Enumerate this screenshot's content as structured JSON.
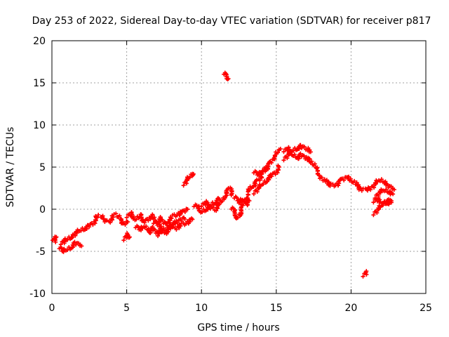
{
  "chart_data": {
    "type": "scatter",
    "title": "Day 253 of 2022, Sidereal Day-to-day VTEC variation (SDTVAR) for receiver p817",
    "xlabel": "GPS time / hours",
    "ylabel": "SDTVAR / TECUs",
    "xlim": [
      0,
      25
    ],
    "ylim": [
      -10,
      20
    ],
    "xticks": [
      0,
      5,
      10,
      15,
      20,
      25
    ],
    "yticks": [
      -10,
      -5,
      0,
      5,
      10,
      15,
      20
    ],
    "grid": true,
    "marker": "plus",
    "series": [
      {
        "name": "SDTVAR",
        "color": "#ff0000",
        "segments": [
          [
            [
              0.05,
              -3.5
            ],
            [
              0.2,
              -3.8
            ],
            [
              0.3,
              -3.3
            ]
          ],
          [
            [
              0.5,
              -4.5
            ],
            [
              0.7,
              -5.0
            ],
            [
              1.0,
              -4.8
            ],
            [
              1.3,
              -4.5
            ],
            [
              1.6,
              -4.0
            ],
            [
              1.9,
              -4.2
            ]
          ],
          [
            [
              0.6,
              -4.0
            ],
            [
              0.8,
              -3.8
            ],
            [
              1.0,
              -3.6
            ],
            [
              1.3,
              -3.3
            ]
          ],
          [
            [
              1.3,
              -3.2
            ],
            [
              1.6,
              -2.8
            ],
            [
              1.9,
              -2.5
            ],
            [
              2.2,
              -2.3
            ],
            [
              2.5,
              -2.0
            ],
            [
              2.8,
              -1.5
            ],
            [
              3.0,
              -1.0
            ],
            [
              3.2,
              -0.8
            ],
            [
              3.5,
              -1.2
            ],
            [
              3.8,
              -1.5
            ],
            [
              4.0,
              -1.0
            ],
            [
              4.3,
              -0.7
            ],
            [
              4.6,
              -1.2
            ],
            [
              4.8,
              -1.8
            ],
            [
              5.0,
              -1.5
            ]
          ],
          [
            [
              4.8,
              -3.5
            ],
            [
              5.0,
              -3.0
            ],
            [
              5.2,
              -3.3
            ]
          ],
          [
            [
              5.0,
              -0.8
            ],
            [
              5.3,
              -0.5
            ],
            [
              5.6,
              -1.2
            ],
            [
              5.9,
              -0.7
            ],
            [
              6.2,
              -1.5
            ],
            [
              6.5,
              -1.0
            ],
            [
              6.8,
              -0.8
            ],
            [
              7.0,
              -1.5
            ],
            [
              7.3,
              -1.0
            ],
            [
              7.6,
              -1.8
            ],
            [
              7.9,
              -1.2
            ],
            [
              8.2,
              -0.8
            ],
            [
              8.5,
              -0.5
            ],
            [
              8.8,
              -0.3
            ],
            [
              9.0,
              0.0
            ]
          ],
          [
            [
              5.6,
              -2.0
            ],
            [
              5.9,
              -2.5
            ],
            [
              6.2,
              -2.0
            ],
            [
              6.5,
              -2.8
            ],
            [
              6.8,
              -2.2
            ],
            [
              7.0,
              -3.0
            ],
            [
              7.3,
              -2.5
            ],
            [
              7.6,
              -2.8
            ],
            [
              7.9,
              -2.0
            ],
            [
              8.2,
              -2.3
            ],
            [
              8.5,
              -2.0
            ],
            [
              8.8,
              -1.8
            ],
            [
              9.1,
              -1.5
            ],
            [
              9.4,
              -1.2
            ]
          ],
          [
            [
              6.8,
              -1.5
            ],
            [
              7.2,
              -2.0
            ],
            [
              7.6,
              -2.5
            ],
            [
              8.0,
              -1.8
            ],
            [
              8.4,
              -1.5
            ],
            [
              8.8,
              -1.0
            ]
          ],
          [
            [
              8.8,
              3.0
            ],
            [
              9.0,
              3.4
            ],
            [
              9.2,
              3.8
            ],
            [
              9.4,
              4.2
            ]
          ],
          [
            [
              9.5,
              0.5
            ],
            [
              9.8,
              0.2
            ],
            [
              10.0,
              -0.3
            ],
            [
              10.3,
              0.0
            ],
            [
              10.6,
              0.3
            ],
            [
              10.9,
              0.0
            ],
            [
              11.2,
              0.5
            ],
            [
              11.5,
              1.5
            ],
            [
              11.7,
              2.0
            ],
            [
              11.9,
              2.5
            ],
            [
              12.0,
              1.8
            ]
          ],
          [
            [
              10.0,
              0.5
            ],
            [
              10.3,
              0.8
            ],
            [
              10.6,
              0.5
            ],
            [
              10.9,
              0.8
            ],
            [
              11.2,
              1.2
            ]
          ],
          [
            [
              11.5,
              16.2
            ],
            [
              11.65,
              15.8
            ],
            [
              11.8,
              15.5
            ]
          ],
          [
            [
              12.0,
              0.2
            ],
            [
              12.2,
              -0.3
            ],
            [
              12.4,
              -1.0
            ],
            [
              12.6,
              -0.5
            ],
            [
              12.8,
              0.5
            ],
            [
              13.0,
              1.5
            ],
            [
              13.2,
              2.2
            ],
            [
              13.4,
              2.8
            ],
            [
              13.6,
              3.0
            ],
            [
              13.8,
              3.5
            ],
            [
              14.0,
              4.0
            ],
            [
              14.2,
              4.5
            ],
            [
              14.4,
              5.0
            ],
            [
              14.6,
              5.5
            ],
            [
              14.8,
              6.0
            ],
            [
              15.0,
              6.5
            ],
            [
              15.2,
              7.0
            ]
          ],
          [
            [
              12.2,
              1.5
            ],
            [
              12.5,
              0.8
            ],
            [
              12.8,
              1.2
            ],
            [
              13.0,
              0.5
            ],
            [
              13.2,
              1.0
            ]
          ],
          [
            [
              13.5,
              2.0
            ],
            [
              13.8,
              2.5
            ],
            [
              14.1,
              3.0
            ],
            [
              14.4,
              3.5
            ],
            [
              14.7,
              4.0
            ],
            [
              15.0,
              4.5
            ],
            [
              15.2,
              5.0
            ]
          ],
          [
            [
              13.5,
              4.5
            ],
            [
              13.8,
              4.0
            ],
            [
              14.1,
              4.5
            ],
            [
              14.3,
              5.0
            ]
          ],
          [
            [
              15.5,
              6.0
            ],
            [
              15.8,
              6.5
            ],
            [
              16.1,
              7.0
            ],
            [
              16.4,
              7.2
            ],
            [
              16.7,
              7.5
            ],
            [
              17.0,
              7.2
            ],
            [
              17.3,
              6.8
            ]
          ],
          [
            [
              15.5,
              7.0
            ],
            [
              15.8,
              7.2
            ],
            [
              16.1,
              6.5
            ],
            [
              16.4,
              6.0
            ],
            [
              16.7,
              6.5
            ],
            [
              17.0,
              6.0
            ],
            [
              17.3,
              5.8
            ],
            [
              17.6,
              5.0
            ],
            [
              17.9,
              4.0
            ],
            [
              18.2,
              3.5
            ],
            [
              18.5,
              3.0
            ],
            [
              18.8,
              2.8
            ],
            [
              19.1,
              3.0
            ],
            [
              19.4,
              3.5
            ],
            [
              19.7,
              3.8
            ],
            [
              20.0,
              3.5
            ],
            [
              20.3,
              3.0
            ],
            [
              20.6,
              2.5
            ],
            [
              20.9,
              2.3
            ],
            [
              21.2,
              2.5
            ]
          ],
          [
            [
              20.8,
              -7.8
            ],
            [
              21.0,
              -7.5
            ]
          ],
          [
            [
              21.3,
              2.5
            ],
            [
              21.6,
              3.0
            ],
            [
              21.9,
              3.5
            ],
            [
              22.2,
              3.2
            ],
            [
              22.5,
              2.8
            ],
            [
              22.8,
              2.5
            ]
          ],
          [
            [
              21.6,
              1.5
            ],
            [
              21.9,
              2.0
            ],
            [
              22.2,
              2.3
            ],
            [
              22.5,
              2.0
            ],
            [
              22.8,
              1.8
            ]
          ],
          [
            [
              21.5,
              -0.5
            ],
            [
              21.8,
              0.0
            ],
            [
              22.1,
              0.5
            ],
            [
              22.4,
              1.0
            ],
            [
              22.7,
              1.0
            ]
          ],
          [
            [
              21.5,
              1.0
            ],
            [
              21.8,
              1.2
            ],
            [
              22.1,
              0.8
            ],
            [
              22.4,
              0.7
            ],
            [
              22.7,
              0.8
            ]
          ]
        ]
      }
    ]
  }
}
